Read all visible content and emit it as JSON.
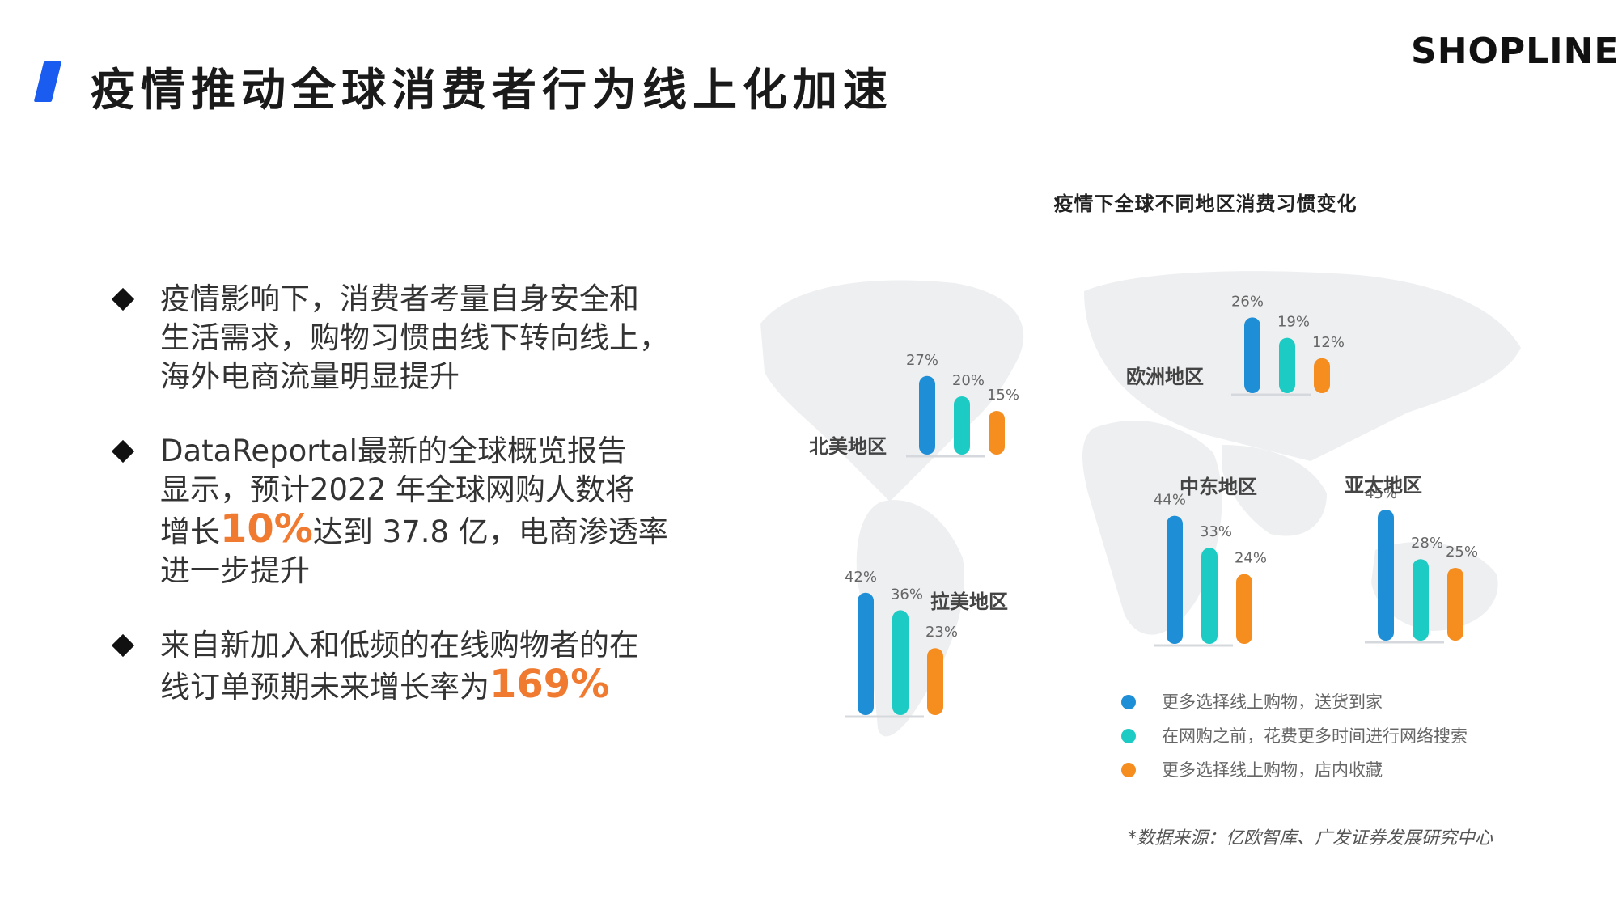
{
  "header": {
    "title": "疫情推动全球消费者行为线上化加速",
    "logo": "SHOPLINE"
  },
  "bullets": [
    {
      "parts": [
        "疫情影响下，消费者考量自身安全和",
        "生活需求，购物习惯由线下转向线上，",
        "海外电商流量明显提升"
      ]
    },
    {
      "line1": "DataReportal最新的全球概览报告",
      "line2": "显示，预计2022 年全球网购人数将",
      "line3_pre": "增长",
      "line3_hl": "10%",
      "line3_post": "达到 37.8 亿，电商渗透率",
      "line4": "进一步提升"
    },
    {
      "line1": "来自新加入和低频的在线购物者的在",
      "line2_pre": "线订单预期未来增长率为",
      "line2_hl": "169%"
    }
  ],
  "chart_data": {
    "type": "bar",
    "title": "疫情下全球不同地区消费习惯变化",
    "series_colors": [
      "#1e8fd6",
      "#1ccbc4",
      "#f58d1f"
    ],
    "legend": [
      "更多选择线上购物，送货到家",
      "在网购之前，花费更多时间进行网络搜索",
      "更多选择线上购物，店内收藏"
    ],
    "legend_placement": "bottom-right",
    "groups": [
      {
        "region": "北美地区",
        "values": [
          27,
          20,
          15
        ],
        "labels": [
          "27%",
          "20%",
          "15%"
        ]
      },
      {
        "region": "欧洲地区",
        "values": [
          26,
          19,
          12
        ],
        "labels": [
          "26%",
          "19%",
          "12%"
        ]
      },
      {
        "region": "中东地区",
        "values": [
          44,
          33,
          24
        ],
        "labels": [
          "44%",
          "33%",
          "24%"
        ]
      },
      {
        "region": "亚太地区",
        "values": [
          45,
          28,
          25
        ],
        "labels": [
          "45%",
          "28%",
          "25%"
        ]
      },
      {
        "region": "拉美地区",
        "values": [
          42,
          36,
          23
        ],
        "labels": [
          "42%",
          "36%",
          "23%"
        ]
      }
    ]
  },
  "footer": {
    "source": "*数据来源：亿欧智库、广发证券发展研究中心"
  }
}
